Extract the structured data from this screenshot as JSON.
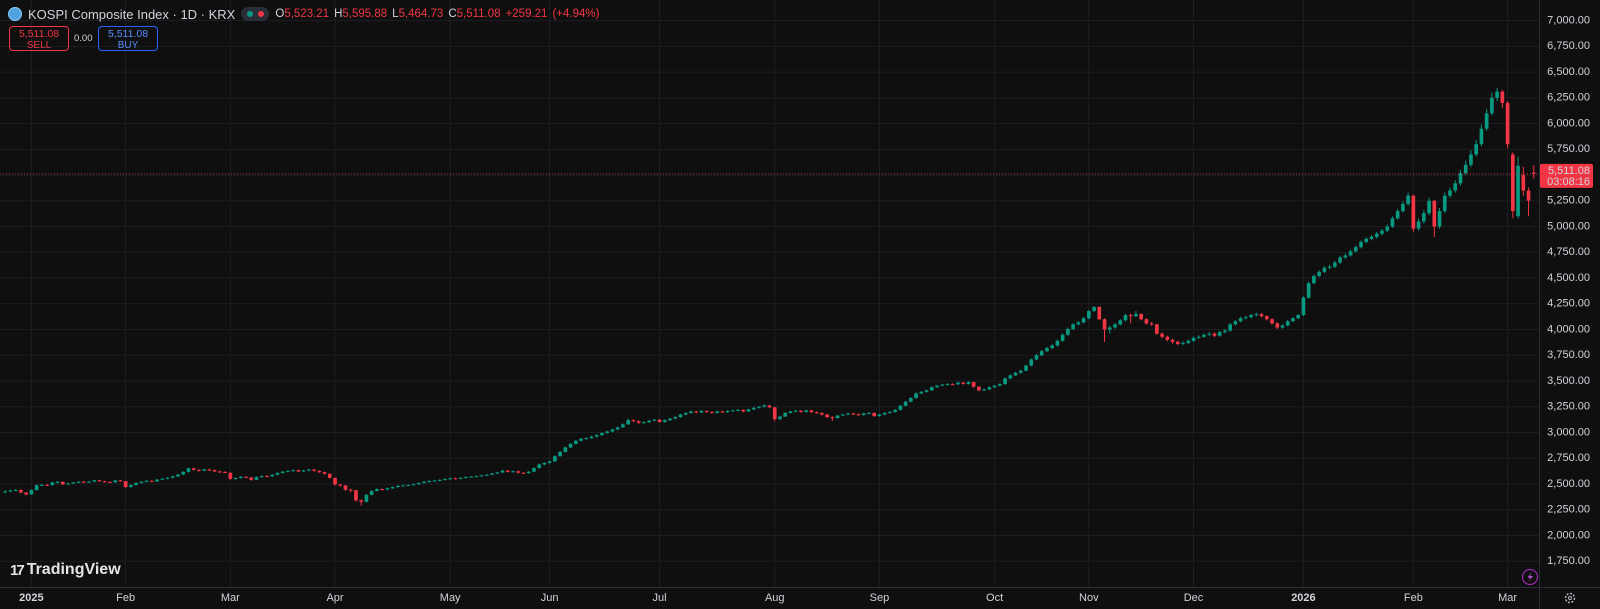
{
  "chart_data": {
    "type": "candlestick",
    "title": "KOSPI Composite Index · 1D · KRX",
    "ohlc_prefixes": [
      "O",
      "H",
      "L",
      "C"
    ],
    "last_labels": {
      "open": "5,523.21",
      "high": "5,595.88",
      "low": "5,464.73",
      "close": "5,511.08",
      "change": "+259.21",
      "change_pct": "(+4.94%)"
    },
    "sell": {
      "price": "5,511.08",
      "label": "SELL"
    },
    "spread": "0.00",
    "buy": {
      "price": "5,511.08",
      "label": "BUY"
    },
    "last_price_label": "5,511.08",
    "countdown": "03:08:16",
    "watermark": "TradingView",
    "up_color": "#089981",
    "down_color": "#f23645",
    "open": [
      2420,
      2428,
      2437,
      2442,
      2417,
      2399,
      2441,
      2488,
      2492,
      2489,
      2515,
      2521,
      2497,
      2505,
      2515,
      2522,
      2518,
      2523,
      2536,
      2527,
      2520,
      2517,
      2535,
      2528,
      2471,
      2490,
      2510,
      2522,
      2531,
      2525,
      2543,
      2552,
      2560,
      2574,
      2592,
      2618,
      2652,
      2638,
      2629,
      2641,
      2635,
      2622,
      2617,
      2610,
      2550,
      2558,
      2570,
      2563,
      2540,
      2568,
      2577,
      2574,
      2590,
      2607,
      2620,
      2628,
      2634,
      2622,
      2631,
      2640,
      2628,
      2615,
      2600,
      2560,
      2495,
      2486,
      2445,
      2440,
      2342,
      2328,
      2395,
      2432,
      2450,
      2446,
      2458,
      2470,
      2482,
      2486,
      2490,
      2498,
      2510,
      2522,
      2530,
      2534,
      2540,
      2548,
      2556,
      2552,
      2560,
      2568,
      2572,
      2576,
      2584,
      2590,
      2602,
      2612,
      2630,
      2618,
      2624,
      2610,
      2606,
      2620,
      2655,
      2690,
      2705,
      2720,
      2770,
      2812,
      2855,
      2890,
      2920,
      2940,
      2946,
      2960,
      2975,
      2995,
      3010,
      3030,
      3050,
      3080,
      3120,
      3110,
      3095,
      3100,
      3115,
      3125,
      3102,
      3120,
      3135,
      3150,
      3175,
      3190,
      3205,
      3195,
      3210,
      3200,
      3190,
      3205,
      3198,
      3210,
      3215,
      3220,
      3205,
      3225,
      3240,
      3250,
      3262,
      3245,
      3130,
      3155,
      3190,
      3205,
      3212,
      3200,
      3215,
      3198,
      3190,
      3175,
      3150,
      3140,
      3165,
      3175,
      3185,
      3178,
      3170,
      3185,
      3190,
      3160,
      3175,
      3190,
      3200,
      3220,
      3260,
      3300,
      3335,
      3380,
      3395,
      3410,
      3440,
      3455,
      3465,
      3470,
      3468,
      3485,
      3472,
      3490,
      3445,
      3410,
      3418,
      3440,
      3455,
      3470,
      3525,
      3555,
      3580,
      3600,
      3650,
      3710,
      3750,
      3790,
      3820,
      3845,
      3890,
      3950,
      4005,
      4050,
      4070,
      4110,
      4180,
      4220,
      4100,
      4000,
      4020,
      4050,
      4090,
      4140,
      4130,
      4150,
      4100,
      4060,
      4050,
      3960,
      3930,
      3900,
      3880,
      3860,
      3870,
      3890,
      3920,
      3930,
      3950,
      3960,
      3940,
      3975,
      3990,
      4050,
      4080,
      4110,
      4120,
      4140,
      4150,
      4130,
      4100,
      4060,
      4020,
      4040,
      4080,
      4110,
      4140,
      4310,
      4450,
      4520,
      4560,
      4600,
      4610,
      4650,
      4700,
      4720,
      4760,
      4800,
      4850,
      4880,
      4900,
      4930,
      4960,
      5000,
      5080,
      5150,
      5220,
      5300,
      4980,
      5050,
      5130,
      5250,
      5000,
      5150,
      5300,
      5350,
      5420,
      5520,
      5600,
      5700,
      5800,
      5950,
      6100,
      6250,
      6310,
      6200,
      5700,
      5100,
      5500,
      5350,
      5523.21
    ],
    "high": [
      2440,
      2446,
      2452,
      2450,
      2422,
      2448,
      2495,
      2500,
      2502,
      2522,
      2530,
      2526,
      2512,
      2520,
      2528,
      2530,
      2530,
      2542,
      2541,
      2532,
      2526,
      2540,
      2540,
      2530,
      2496,
      2516,
      2528,
      2537,
      2536,
      2548,
      2558,
      2566,
      2580,
      2598,
      2625,
      2660,
      2658,
      2644,
      2648,
      2650,
      2640,
      2630,
      2624,
      2612,
      2566,
      2576,
      2578,
      2568,
      2574,
      2584,
      2586,
      2596,
      2614,
      2626,
      2634,
      2642,
      2640,
      2638,
      2647,
      2645,
      2634,
      2620,
      2603,
      2562,
      2502,
      2490,
      2455,
      2442,
      2350,
      2402,
      2440,
      2458,
      2458,
      2465,
      2476,
      2488,
      2493,
      2496,
      2504,
      2516,
      2528,
      2536,
      2540,
      2546,
      2554,
      2562,
      2564,
      2566,
      2574,
      2578,
      2582,
      2590,
      2596,
      2608,
      2618,
      2637,
      2636,
      2630,
      2630,
      2616,
      2626,
      2662,
      2698,
      2712,
      2728,
      2778,
      2820,
      2864,
      2898,
      2928,
      2948,
      2955,
      2968,
      2982,
      3002,
      3018,
      3038,
      3058,
      3088,
      3135,
      3128,
      3118,
      3110,
      3122,
      3132,
      3130,
      3128,
      3142,
      3158,
      3182,
      3198,
      3212,
      3210,
      3218,
      3216,
      3206,
      3212,
      3212,
      3218,
      3222,
      3228,
      3226,
      3232,
      3248,
      3258,
      3275,
      3268,
      3248,
      3164,
      3198,
      3212,
      3220,
      3218,
      3222,
      3220,
      3204,
      3196,
      3180,
      3158,
      3172,
      3182,
      3192,
      3192,
      3185,
      3192,
      3198,
      3195,
      3182,
      3197,
      3208,
      3228,
      3268,
      3308,
      3344,
      3390,
      3404,
      3418,
      3448,
      3463,
      3473,
      3480,
      3478,
      3493,
      3490,
      3498,
      3494,
      3450,
      3428,
      3448,
      3463,
      3478,
      3534,
      3564,
      3590,
      3610,
      3660,
      3720,
      3762,
      3802,
      3832,
      3858,
      3902,
      3962,
      4018,
      4062,
      4084,
      4122,
      4192,
      4226,
      4224,
      4110,
      4036,
      4064,
      4102,
      4152,
      4155,
      4180,
      4160,
      4110,
      4072,
      4056,
      3972,
      3942,
      3912,
      3894,
      3884,
      3904,
      3932,
      3944,
      3962,
      3974,
      3972,
      3988,
      4004,
      4062,
      4092,
      4124,
      4134,
      4152,
      4164,
      4162,
      4140,
      4110,
      4070,
      4052,
      4092,
      4122,
      4152,
      4324,
      4466,
      4536,
      4576,
      4616,
      4628,
      4666,
      4716,
      4738,
      4776,
      4816,
      4866,
      4898,
      4918,
      4948,
      4978,
      5020,
      5100,
      5172,
      5244,
      5330,
      5310,
      5080,
      5160,
      5280,
      5260,
      5180,
      5330,
      5380,
      5450,
      5550,
      5640,
      5740,
      5840,
      5990,
      6140,
      6300,
      6347,
      6330,
      6220,
      5720,
      5680,
      5580,
      5380,
      5595.88
    ],
    "low": [
      2412,
      2420,
      2430,
      2410,
      2390,
      2395,
      2436,
      2480,
      2482,
      2484,
      2508,
      2490,
      2492,
      2500,
      2510,
      2512,
      2512,
      2518,
      2521,
      2514,
      2510,
      2512,
      2522,
      2462,
      2465,
      2486,
      2505,
      2516,
      2518,
      2520,
      2538,
      2546,
      2555,
      2568,
      2588,
      2612,
      2630,
      2620,
      2624,
      2628,
      2615,
      2610,
      2603,
      2540,
      2542,
      2552,
      2556,
      2532,
      2536,
      2562,
      2566,
      2570,
      2585,
      2602,
      2614,
      2622,
      2615,
      2617,
      2625,
      2620,
      2608,
      2592,
      2552,
      2486,
      2475,
      2435,
      2420,
      2330,
      2290,
      2320,
      2390,
      2428,
      2438,
      2440,
      2452,
      2465,
      2476,
      2480,
      2485,
      2493,
      2505,
      2516,
      2525,
      2528,
      2535,
      2542,
      2546,
      2546,
      2554,
      2562,
      2566,
      2570,
      2578,
      2585,
      2596,
      2606,
      2612,
      2612,
      2603,
      2598,
      2600,
      2615,
      2650,
      2684,
      2698,
      2715,
      2765,
      2806,
      2848,
      2884,
      2912,
      2932,
      2940,
      2952,
      2968,
      2988,
      3002,
      3022,
      3044,
      3074,
      3100,
      3085,
      3088,
      3092,
      3108,
      3094,
      3096,
      3112,
      3128,
      3144,
      3168,
      3182,
      3186,
      3188,
      3192,
      3182,
      3184,
      3190,
      3192,
      3202,
      3208,
      3196,
      3200,
      3218,
      3232,
      3244,
      3236,
      3110,
      3120,
      3150,
      3184,
      3198,
      3192,
      3194,
      3190,
      3182,
      3166,
      3140,
      3110,
      3134,
      3158,
      3168,
      3170,
      3162,
      3164,
      3178,
      3152,
      3154,
      3168,
      3184,
      3194,
      3214,
      3254,
      3294,
      3328,
      3372,
      3388,
      3404,
      3432,
      3448,
      3458,
      3460,
      3462,
      3464,
      3466,
      3436,
      3400,
      3402,
      3412,
      3432,
      3448,
      3464,
      3518,
      3548,
      3572,
      3594,
      3642,
      3702,
      3742,
      3782,
      3810,
      3836,
      3882,
      3940,
      3996,
      4040,
      4060,
      4100,
      4170,
      4090,
      3880,
      3960,
      4008,
      4040,
      4080,
      4060,
      4120,
      4088,
      4048,
      4036,
      3948,
      3916,
      3886,
      3862,
      3846,
      3848,
      3860,
      3880,
      3910,
      3920,
      3938,
      3926,
      3930,
      3964,
      3980,
      4040,
      4070,
      4098,
      4108,
      4128,
      4118,
      4088,
      4048,
      4006,
      4008,
      4030,
      4070,
      4100,
      4132,
      4300,
      4440,
      4508,
      4548,
      4586,
      4598,
      4638,
      4686,
      4708,
      4748,
      4788,
      4836,
      4866,
      4884,
      4914,
      4944,
      4986,
      5066,
      5134,
      5200,
      4950,
      4960,
      5030,
      5110,
      4900,
      4980,
      5130,
      5280,
      5330,
      5400,
      5500,
      5580,
      5680,
      5780,
      5930,
      6080,
      6220,
      6150,
      5760,
      5080,
      5080,
      5300,
      5100,
      5464.73
    ],
    "close": [
      2428,
      2437,
      2442,
      2417,
      2399,
      2441,
      2488,
      2492,
      2489,
      2515,
      2521,
      2497,
      2505,
      2515,
      2522,
      2518,
      2523,
      2536,
      2527,
      2520,
      2517,
      2535,
      2528,
      2471,
      2490,
      2510,
      2522,
      2531,
      2525,
      2543,
      2552,
      2560,
      2574,
      2592,
      2618,
      2652,
      2638,
      2629,
      2641,
      2635,
      2622,
      2617,
      2610,
      2550,
      2558,
      2570,
      2563,
      2540,
      2568,
      2577,
      2574,
      2590,
      2607,
      2620,
      2628,
      2634,
      2622,
      2631,
      2640,
      2628,
      2615,
      2600,
      2560,
      2495,
      2486,
      2445,
      2440,
      2342,
      2328,
      2395,
      2432,
      2450,
      2446,
      2458,
      2470,
      2482,
      2486,
      2490,
      2498,
      2510,
      2522,
      2530,
      2534,
      2540,
      2548,
      2556,
      2552,
      2560,
      2568,
      2572,
      2576,
      2584,
      2590,
      2602,
      2612,
      2630,
      2618,
      2624,
      2610,
      2606,
      2620,
      2655,
      2690,
      2705,
      2720,
      2770,
      2812,
      2855,
      2890,
      2920,
      2940,
      2946,
      2960,
      2975,
      2995,
      3010,
      3030,
      3050,
      3080,
      3120,
      3110,
      3095,
      3100,
      3115,
      3125,
      3102,
      3120,
      3135,
      3150,
      3175,
      3190,
      3205,
      3195,
      3210,
      3200,
      3190,
      3205,
      3198,
      3210,
      3215,
      3220,
      3205,
      3225,
      3240,
      3250,
      3262,
      3245,
      3130,
      3155,
      3190,
      3205,
      3212,
      3200,
      3215,
      3198,
      3190,
      3175,
      3150,
      3140,
      3165,
      3175,
      3185,
      3178,
      3170,
      3185,
      3190,
      3160,
      3175,
      3190,
      3200,
      3220,
      3260,
      3300,
      3335,
      3380,
      3395,
      3410,
      3440,
      3455,
      3465,
      3470,
      3468,
      3485,
      3472,
      3490,
      3445,
      3410,
      3418,
      3440,
      3455,
      3470,
      3525,
      3555,
      3580,
      3600,
      3650,
      3710,
      3750,
      3790,
      3820,
      3845,
      3890,
      3950,
      4005,
      4050,
      4070,
      4110,
      4180,
      4220,
      4100,
      4000,
      4020,
      4050,
      4090,
      4140,
      4130,
      4150,
      4100,
      4060,
      4050,
      3960,
      3930,
      3900,
      3880,
      3860,
      3870,
      3890,
      3920,
      3930,
      3950,
      3960,
      3940,
      3975,
      3990,
      4050,
      4080,
      4110,
      4120,
      4140,
      4150,
      4130,
      4100,
      4060,
      4020,
      4040,
      4080,
      4110,
      4140,
      4310,
      4450,
      4520,
      4560,
      4600,
      4610,
      4650,
      4700,
      4720,
      4760,
      4800,
      4850,
      4880,
      4900,
      4930,
      4960,
      5000,
      5080,
      5150,
      5220,
      5300,
      4980,
      5050,
      5130,
      5250,
      5000,
      5150,
      5300,
      5350,
      5420,
      5520,
      5600,
      5700,
      5800,
      5950,
      6100,
      6250,
      6310,
      6200,
      5800,
      5150,
      5590,
      5350,
      5251.87,
      5511.08
    ],
    "xlim": [
      -1,
      293
    ],
    "xticks": [
      {
        "value": 5,
        "label": "2025"
      },
      {
        "value": 23,
        "label": "Feb"
      },
      {
        "value": 43,
        "label": "Mar"
      },
      {
        "value": 63,
        "label": "Apr"
      },
      {
        "value": 85,
        "label": "May"
      },
      {
        "value": 104,
        "label": "Jun"
      },
      {
        "value": 125,
        "label": "Jul"
      },
      {
        "value": 147,
        "label": "Aug"
      },
      {
        "value": 167,
        "label": "Sep"
      },
      {
        "value": 189,
        "label": "Oct"
      },
      {
        "value": 207,
        "label": "Nov"
      },
      {
        "value": 227,
        "label": "Dec"
      },
      {
        "value": 248,
        "label": "2026"
      },
      {
        "value": 269,
        "label": "Feb"
      },
      {
        "value": 287,
        "label": "Mar"
      }
    ],
    "ylim": [
      1500,
      7200
    ],
    "yticks": [
      {
        "value": 1750,
        "label": "1,750.00"
      },
      {
        "value": 2000,
        "label": "2,000.00"
      },
      {
        "value": 2250,
        "label": "2,250.00"
      },
      {
        "value": 2500,
        "label": "2,500.00"
      },
      {
        "value": 2750,
        "label": "2,750.00"
      },
      {
        "value": 3000,
        "label": "3,000.00"
      },
      {
        "value": 3250,
        "label": "3,250.00"
      },
      {
        "value": 3500,
        "label": "3,500.00"
      },
      {
        "value": 3750,
        "label": "3,750.00"
      },
      {
        "value": 4000,
        "label": "4,000.00"
      },
      {
        "value": 4250,
        "label": "4,250.00"
      },
      {
        "value": 4500,
        "label": "4,500.00"
      },
      {
        "value": 4750,
        "label": "4,750.00"
      },
      {
        "value": 5000,
        "label": "5,000.00"
      },
      {
        "value": 5250,
        "label": "5,250.00"
      },
      {
        "value": 5500,
        "label": "5,500.00"
      },
      {
        "value": 5750,
        "label": "5,750.00"
      },
      {
        "value": 6000,
        "label": "6,000.00"
      },
      {
        "value": 6250,
        "label": "6,250.00"
      },
      {
        "value": 6500,
        "label": "6,500.00"
      },
      {
        "value": 6750,
        "label": "6,750.00"
      },
      {
        "value": 7000,
        "label": "7,000.00"
      }
    ],
    "grid": true
  }
}
